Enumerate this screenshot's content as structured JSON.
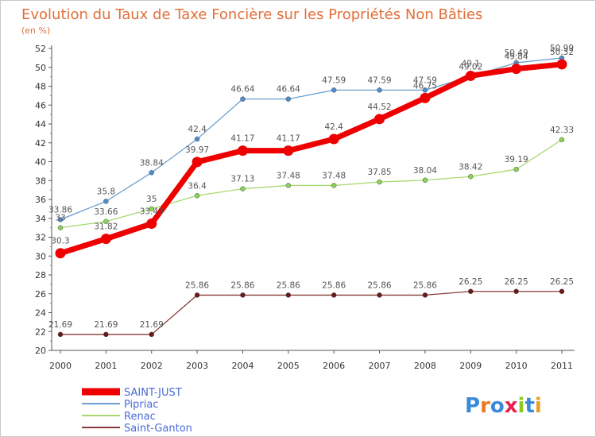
{
  "chart_data": {
    "type": "line",
    "title": "Evolution du Taux de Taxe Foncière sur les Propriétés Non Bâties",
    "subtitle": "(en %)",
    "xlabel": "",
    "ylabel": "",
    "x": [
      "2000",
      "2001",
      "2002",
      "2003",
      "2004",
      "2005",
      "2006",
      "2007",
      "2008",
      "2009",
      "2010",
      "2011"
    ],
    "ylim": [
      20,
      52
    ],
    "yticks": [
      20,
      22,
      24,
      26,
      28,
      30,
      32,
      34,
      36,
      38,
      40,
      42,
      44,
      46,
      48,
      50,
      52
    ],
    "grid": false,
    "legend_position": "bottom-left",
    "series": [
      {
        "name": "Pipriac",
        "color": "#6a9fd0",
        "marker_color": "#4f8cc8",
        "values": [
          33.86,
          35.8,
          38.84,
          42.4,
          46.64,
          46.64,
          47.59,
          47.59,
          47.59,
          49.02,
          50.49,
          50.99
        ],
        "labels": [
          "33.86",
          "35.8",
          "38.84",
          "42.4",
          "46.64",
          "46.64",
          "47.59",
          "47.59",
          "47.59",
          "49.02",
          "50.49",
          "50.99"
        ]
      },
      {
        "name": "Renac",
        "color": "#a8d870",
        "marker_color": "#8cd05a",
        "values": [
          33,
          33.66,
          35,
          36.4,
          37.13,
          37.48,
          37.48,
          37.85,
          38.04,
          38.42,
          39.19,
          42.33
        ],
        "labels": [
          "33",
          "33.66",
          "35",
          "36.4",
          "37.13",
          "37.48",
          "37.48",
          "37.85",
          "38.04",
          "38.42",
          "39.19",
          "42.33"
        ]
      },
      {
        "name": "Saint-Ganton",
        "color": "#8b3a3a",
        "marker_color": "#6a1a1a",
        "values": [
          21.69,
          21.69,
          21.69,
          25.86,
          25.86,
          25.86,
          25.86,
          25.86,
          25.86,
          26.25,
          26.25,
          26.25
        ],
        "labels": [
          "21.69",
          "21.69",
          "21.69",
          "25.86",
          "25.86",
          "25.86",
          "25.86",
          "25.86",
          "25.86",
          "26.25",
          "26.25",
          "26.25"
        ]
      },
      {
        "name": "SAINT-JUST",
        "color": "#ee0000",
        "marker_color": "#ee0000",
        "values": [
          30.3,
          31.82,
          33.43,
          39.97,
          41.17,
          41.17,
          42.4,
          44.52,
          46.75,
          49.1,
          49.84,
          50.32
        ],
        "labels": [
          "30.3",
          "31.82",
          "33.43",
          "39.97",
          "41.17",
          "41.17",
          "42.4",
          "44.52",
          "46.75",
          "49.1",
          "49.84",
          "50.32"
        ]
      }
    ],
    "legend": [
      "SAINT-JUST",
      "Pipriac",
      "Renac",
      "Saint-Ganton"
    ]
  },
  "logo": {
    "text": "Proxiti",
    "letter_colors": [
      "#3a8ad8",
      "#e87a20",
      "#3a8ad8",
      "#e82050",
      "#8cc820",
      "#3a8ad8",
      "#e8a020"
    ]
  }
}
